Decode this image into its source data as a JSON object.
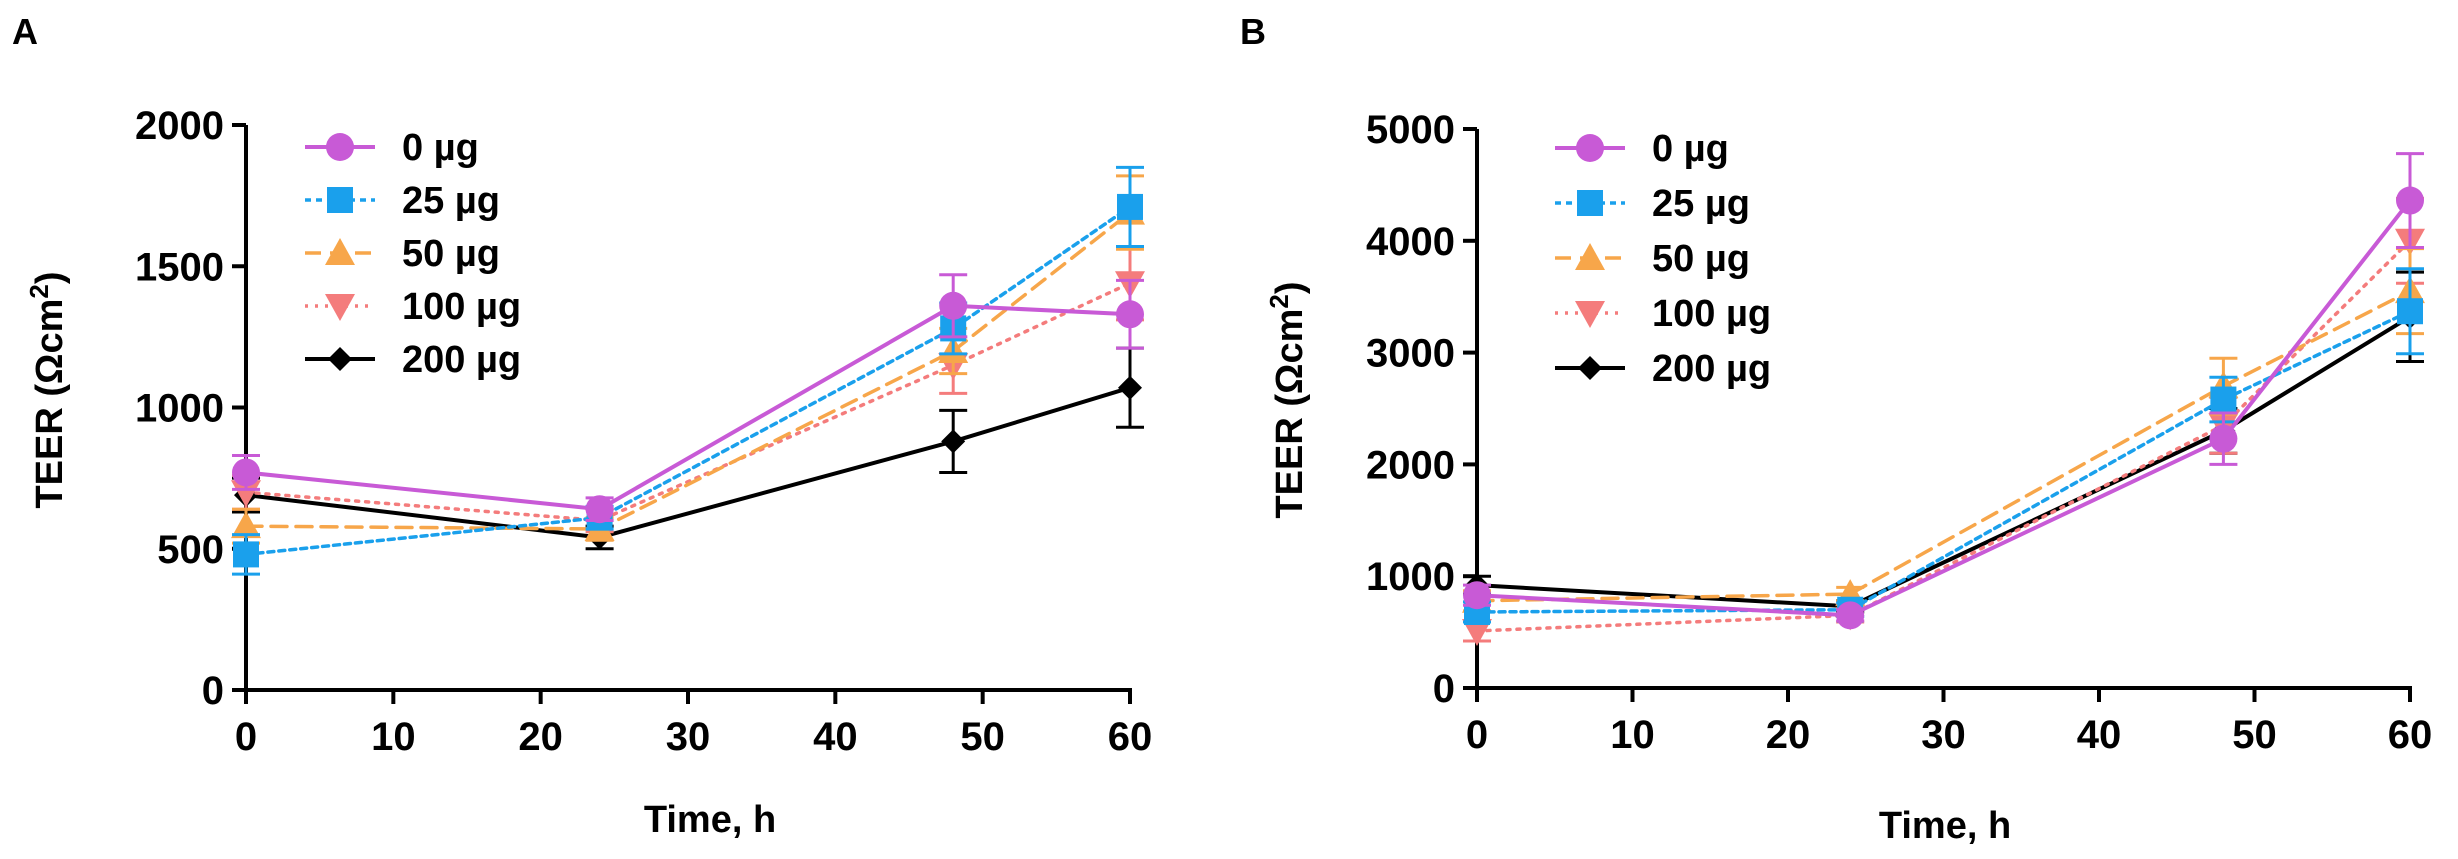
{
  "figure": {
    "panels": [
      {
        "id": "A",
        "label": "A",
        "xlabel": "Time, h",
        "ylabel": "TEER (Ωcm²)",
        "ylabel_main": "TEER (Ωcm",
        "ylabel_sup": "2",
        "ylabel_close": ")"
      },
      {
        "id": "B",
        "label": "B",
        "xlabel": "Time, h",
        "ylabel": "TEER (Ωcm²)",
        "ylabel_main": "TEER (Ωcm",
        "ylabel_sup": "2",
        "ylabel_close": ")"
      }
    ]
  },
  "series_styles": [
    {
      "name": "0 µg",
      "color": "#C85AD6",
      "marker": "circle",
      "dash": "solid"
    },
    {
      "name": "25 µg",
      "color": "#1AA0EC",
      "marker": "square",
      "dash": "short-dash"
    },
    {
      "name": "50 µg",
      "color": "#F7A64A",
      "marker": "triangle-up",
      "dash": "long-dash"
    },
    {
      "name": "100 µg",
      "color": "#F47C7C",
      "marker": "triangle-down",
      "dash": "dotted"
    },
    {
      "name": "200 µg",
      "color": "#000000",
      "marker": "diamond",
      "dash": "solid"
    }
  ],
  "chart_data": [
    {
      "type": "line",
      "title": "A",
      "xlabel": "Time, h",
      "ylabel": "TEER (Ωcm²)",
      "xlim": [
        0,
        60
      ],
      "ylim": [
        0,
        2000
      ],
      "xticks": [
        0,
        10,
        20,
        30,
        40,
        50,
        60
      ],
      "yticks": [
        0,
        500,
        1000,
        1500,
        2000
      ],
      "x": [
        0,
        24,
        48,
        60
      ],
      "legend_position": "top-left",
      "series": [
        {
          "name": "0 µg",
          "values": [
            770,
            640,
            1360,
            1330
          ],
          "error": [
            60,
            40,
            110,
            120
          ]
        },
        {
          "name": "25 µg",
          "values": [
            480,
            610,
            1280,
            1710
          ],
          "error": [
            70,
            40,
            90,
            140
          ]
        },
        {
          "name": "50 µg",
          "values": [
            580,
            570,
            1200,
            1690
          ],
          "error": [
            60,
            40,
            80,
            130
          ]
        },
        {
          "name": "100 µg",
          "values": [
            700,
            600,
            1150,
            1440
          ],
          "error": [
            60,
            40,
            100,
            130
          ]
        },
        {
          "name": "200 µg",
          "values": [
            690,
            540,
            880,
            1070
          ],
          "error": [
            60,
            40,
            110,
            140
          ]
        }
      ]
    },
    {
      "type": "line",
      "title": "B",
      "xlabel": "Time, h",
      "ylabel": "TEER (Ωcm²)",
      "xlim": [
        0,
        60
      ],
      "ylim": [
        0,
        5000
      ],
      "xticks": [
        0,
        10,
        20,
        30,
        40,
        50,
        60
      ],
      "yticks": [
        0,
        1000,
        2000,
        3000,
        4000,
        5000
      ],
      "x": [
        0,
        24,
        48,
        60
      ],
      "legend_position": "top-left",
      "series": [
        {
          "name": "0 µg",
          "values": [
            830,
            650,
            2230,
            4360
          ],
          "error": [
            90,
            50,
            230,
            420
          ]
        },
        {
          "name": "25 µg",
          "values": [
            680,
            700,
            2580,
            3370
          ],
          "error": [
            90,
            60,
            200,
            380
          ]
        },
        {
          "name": "50 µg",
          "values": [
            780,
            840,
            2700,
            3550
          ],
          "error": [
            90,
            60,
            250,
            380
          ]
        },
        {
          "name": "100 µg",
          "values": [
            510,
            650,
            2350,
            4000
          ],
          "error": [
            90,
            60,
            250,
            380
          ]
        },
        {
          "name": "200 µg",
          "values": [
            920,
            730,
            2300,
            3320
          ],
          "error": [
            80,
            50,
            200,
            400
          ]
        }
      ]
    }
  ]
}
